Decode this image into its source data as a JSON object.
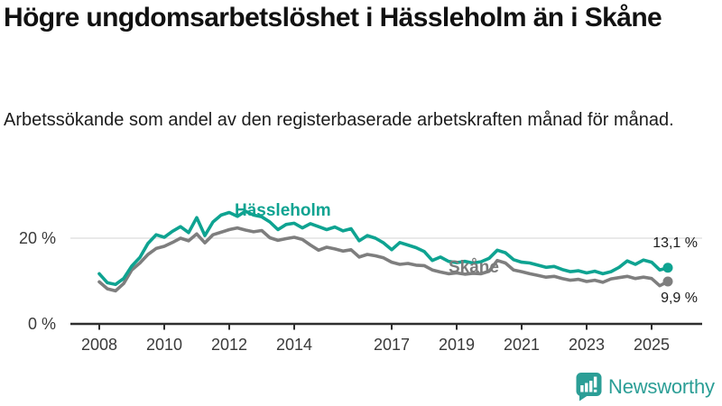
{
  "title": "Högre ungdomsarbetslöshet i Hässleholm än i Skåne",
  "subtitle": "Arbetssökande som andel av den registerbaserade arbetskraften månad för månad.",
  "branding": {
    "name": "Newsworthy",
    "icon": "newsworthy-speech-bubble-bars-icon",
    "color": "#2b9e96"
  },
  "chart_data": {
    "type": "line",
    "title": "Högre ungdomsarbetslöshet i Hässleholm än i Skåne",
    "subtitle": "Arbetssökande som andel av den registerbaserade arbetskraften månad för månad.",
    "xlabel": "",
    "ylabel": "",
    "xlim": [
      2007.1,
      2026.5
    ],
    "ylim": [
      0,
      28.8
    ],
    "grid": "single horizontal gridline at 20 %",
    "legend": "inline labels on lines",
    "xticks": [
      2008,
      2010,
      2012,
      2014,
      2017,
      2019,
      2021,
      2023,
      2025
    ],
    "yticks": [
      {
        "value": 0,
        "label": "0 %"
      },
      {
        "value": 20,
        "label": "20 %"
      }
    ],
    "x": [
      2008,
      2008.25,
      2008.5,
      2008.75,
      2009,
      2009.25,
      2009.5,
      2009.75,
      2010,
      2010.25,
      2010.5,
      2010.75,
      2011,
      2011.25,
      2011.5,
      2011.75,
      2012,
      2012.25,
      2012.5,
      2012.75,
      2013,
      2013.25,
      2013.5,
      2013.75,
      2014,
      2014.25,
      2014.5,
      2014.75,
      2015,
      2015.25,
      2015.5,
      2015.75,
      2016,
      2016.25,
      2016.5,
      2016.75,
      2017,
      2017.25,
      2017.5,
      2017.75,
      2018,
      2018.25,
      2018.5,
      2018.75,
      2019,
      2019.25,
      2019.5,
      2019.75,
      2020,
      2020.25,
      2020.5,
      2020.75,
      2021,
      2021.25,
      2021.5,
      2021.75,
      2022,
      2022.25,
      2022.5,
      2022.75,
      2023,
      2023.25,
      2023.5,
      2023.75,
      2024,
      2024.25,
      2024.5,
      2024.75,
      2025,
      2025.25,
      2025.5
    ],
    "series": [
      {
        "name": "Hässleholm",
        "color": "#0ea391",
        "end_label": "13,1 %",
        "end_value": 13.1,
        "values": [
          11.7,
          9.6,
          9.2,
          10.6,
          13.5,
          15.5,
          18.8,
          20.8,
          20.2,
          21.6,
          22.7,
          21.3,
          24.8,
          20.6,
          23.8,
          25.4,
          26.0,
          25.1,
          26.3,
          25.4,
          25.0,
          23.8,
          22.0,
          23.2,
          23.5,
          22.4,
          23.4,
          22.7,
          22.0,
          22.6,
          21.7,
          22.2,
          19.4,
          20.6,
          20.0,
          18.9,
          17.3,
          19.0,
          18.4,
          17.8,
          16.9,
          14.8,
          15.6,
          14.6,
          14.3,
          14.6,
          14.2,
          14.5,
          15.3,
          17.2,
          16.6,
          15.0,
          14.4,
          14.2,
          13.7,
          13.2,
          13.4,
          12.7,
          12.2,
          12.4,
          11.9,
          12.3,
          11.7,
          12.2,
          13.2,
          14.7,
          13.9,
          14.9,
          14.4,
          12.6,
          13.1
        ]
      },
      {
        "name": "Skåne",
        "color": "#7e7e7e",
        "end_label": "9,9 %",
        "end_value": 9.9,
        "values": [
          9.8,
          8.2,
          7.7,
          9.4,
          12.6,
          14.2,
          16.2,
          17.6,
          18.1,
          19.0,
          20.0,
          19.4,
          21.0,
          18.9,
          20.8,
          21.4,
          22.0,
          22.4,
          21.9,
          21.5,
          21.8,
          20.1,
          19.5,
          19.9,
          20.2,
          19.7,
          18.4,
          17.2,
          17.9,
          17.5,
          17.0,
          17.3,
          15.6,
          16.2,
          15.9,
          15.4,
          14.4,
          13.9,
          14.1,
          13.7,
          13.6,
          12.6,
          12.1,
          11.7,
          11.9,
          11.6,
          11.8,
          11.7,
          12.3,
          14.8,
          14.2,
          12.6,
          12.2,
          11.7,
          11.3,
          10.9,
          11.1,
          10.6,
          10.2,
          10.4,
          9.9,
          10.2,
          9.7,
          10.5,
          10.8,
          11.1,
          10.6,
          10.9,
          10.6,
          8.9,
          9.9
        ]
      }
    ],
    "style": {
      "axis_color": "#2f2f2f",
      "grid_color": "#dcdcdc",
      "tick_label_color": "#3a3a3a"
    }
  }
}
